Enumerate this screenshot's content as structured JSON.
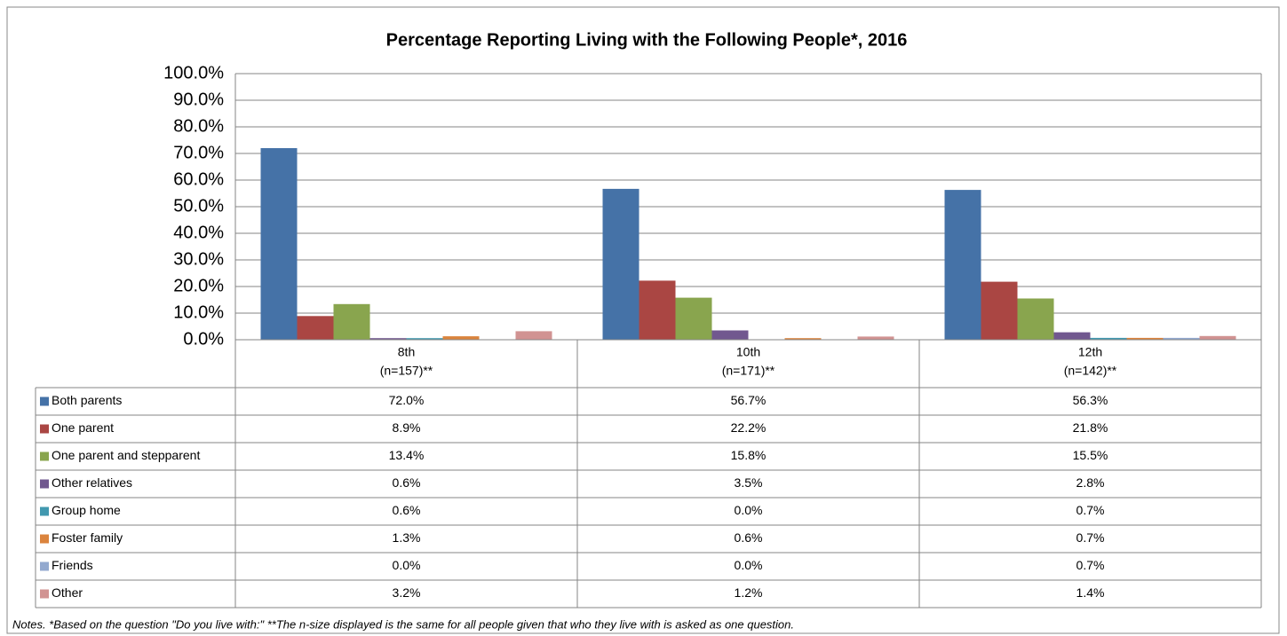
{
  "chart_data": {
    "type": "bar",
    "title": "Percentage Reporting Living with the Following People*, 2016",
    "categories": [
      [
        "8th",
        "(n=157)**"
      ],
      [
        "10th",
        "(n=171)**"
      ],
      [
        "12th",
        "(n=142)**"
      ]
    ],
    "series": [
      {
        "name": "Both parents",
        "color": "#4572a7",
        "values": [
          72.0,
          56.7,
          56.3
        ],
        "value_labels": [
          "72.0%",
          "56.7%",
          "56.3%"
        ]
      },
      {
        "name": "One parent",
        "color": "#aa4643",
        "values": [
          8.9,
          22.2,
          21.8
        ],
        "value_labels": [
          "8.9%",
          "22.2%",
          "21.8%"
        ]
      },
      {
        "name": "One parent and stepparent",
        "color": "#89a54e",
        "values": [
          13.4,
          15.8,
          15.5
        ],
        "value_labels": [
          "13.4%",
          "15.8%",
          "15.5%"
        ]
      },
      {
        "name": "Other relatives",
        "color": "#71588f",
        "values": [
          0.6,
          3.5,
          2.8
        ],
        "value_labels": [
          "0.6%",
          "3.5%",
          "2.8%"
        ]
      },
      {
        "name": "Group home",
        "color": "#4198af",
        "values": [
          0.6,
          0.0,
          0.7
        ],
        "value_labels": [
          "0.6%",
          "0.0%",
          "0.7%"
        ]
      },
      {
        "name": "Foster family",
        "color": "#db843d",
        "values": [
          1.3,
          0.6,
          0.7
        ],
        "value_labels": [
          "1.3%",
          "0.6%",
          "0.7%"
        ]
      },
      {
        "name": "Friends",
        "color": "#93a9cf",
        "values": [
          0.0,
          0.0,
          0.7
        ],
        "value_labels": [
          "0.0%",
          "0.0%",
          "0.7%"
        ]
      },
      {
        "name": "Other",
        "color": "#d19392",
        "values": [
          3.2,
          1.2,
          1.4
        ],
        "value_labels": [
          "3.2%",
          "1.2%",
          "1.4%"
        ]
      }
    ],
    "ylim": [
      0,
      100
    ],
    "yticks": [
      {
        "value": 0,
        "label": "0.0%"
      },
      {
        "value": 10,
        "label": "10.0%"
      },
      {
        "value": 20,
        "label": "20.0%"
      },
      {
        "value": 30,
        "label": "30.0%"
      },
      {
        "value": 40,
        "label": "40.0%"
      },
      {
        "value": 50,
        "label": "50.0%"
      },
      {
        "value": 60,
        "label": "60.0%"
      },
      {
        "value": 70,
        "label": "70.0%"
      },
      {
        "value": 80,
        "label": "80.0%"
      },
      {
        "value": 90,
        "label": "90.0%"
      },
      {
        "value": 100,
        "label": "100.0%"
      }
    ],
    "grid": true,
    "notes": "Notes. *Based on the question \"Do you live with:\" **The n-size displayed is the same for all people given that who they live with is asked as one question."
  }
}
